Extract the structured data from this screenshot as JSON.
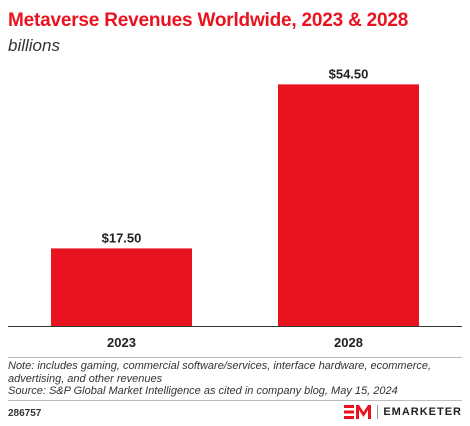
{
  "header": {
    "title": "Metaverse Revenues Worldwide, 2023 & 2028",
    "subtitle": "billions"
  },
  "chart_data": {
    "type": "bar",
    "title": "Metaverse Revenues Worldwide, 2023 & 2028",
    "subtitle": "billions",
    "categories": [
      "2023",
      "2028"
    ],
    "values": [
      17.5,
      54.5
    ],
    "value_labels": [
      "$17.50",
      "$54.50"
    ],
    "xlabel": "",
    "ylabel": "",
    "ylim": [
      0,
      60
    ],
    "grid": false,
    "bar_color": "#e8131f"
  },
  "footer": {
    "note": "Note: includes gaming, commercial software/services, interface hardware, ecommerce, advertising, and other revenues",
    "source": "Source: S&P Global Market Intelligence as cited in company blog, May 15, 2024",
    "chart_id": "286757",
    "brand": "EMARKETER"
  },
  "colors": {
    "accent": "#e8131f",
    "text": "#222222",
    "axis": "#333333"
  }
}
